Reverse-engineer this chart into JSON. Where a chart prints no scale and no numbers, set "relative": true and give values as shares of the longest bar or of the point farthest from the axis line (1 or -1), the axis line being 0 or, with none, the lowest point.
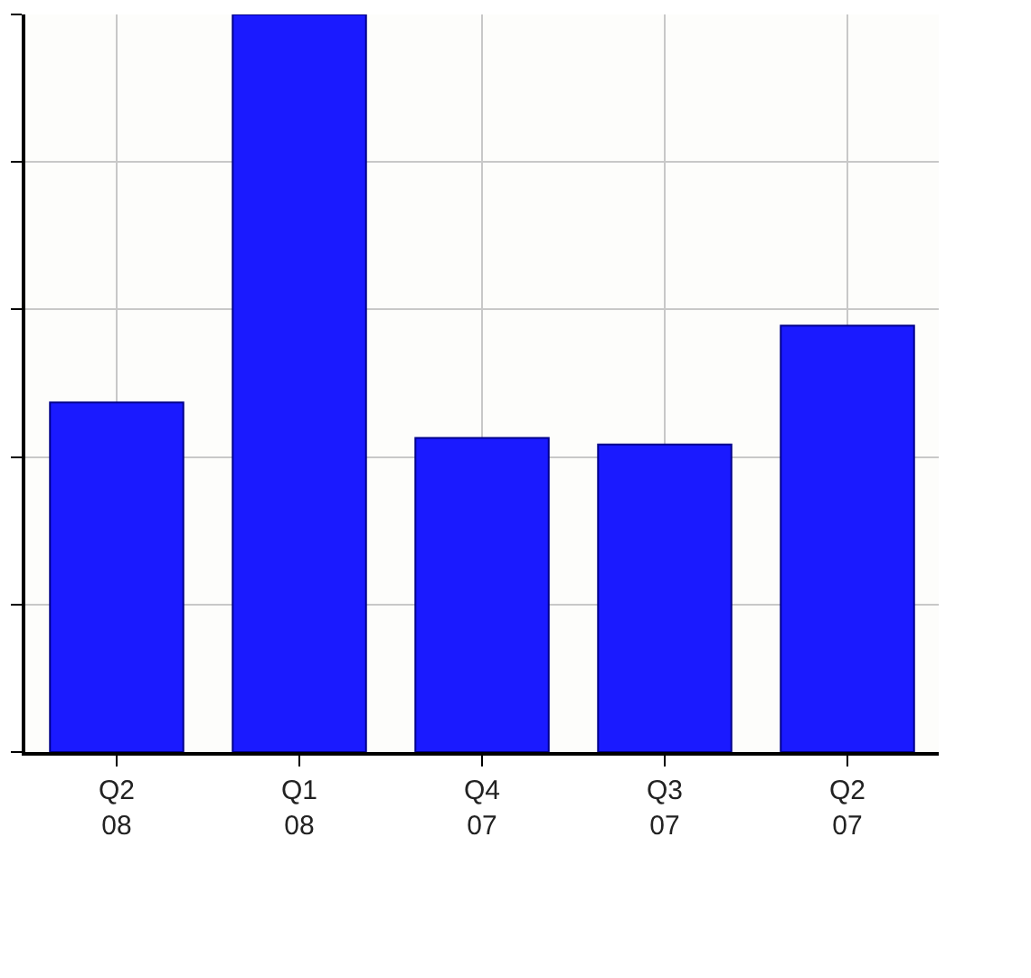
{
  "chart_data": {
    "type": "bar",
    "relative": true,
    "categories": [
      "Q2\n08",
      "Q1\n08",
      "Q4\n07",
      "Q3\n07",
      "Q2\n07"
    ],
    "values": [
      0.474,
      1,
      0.426,
      0.417,
      0.578
    ],
    "color": "#1a1aff",
    "grid": true
  }
}
